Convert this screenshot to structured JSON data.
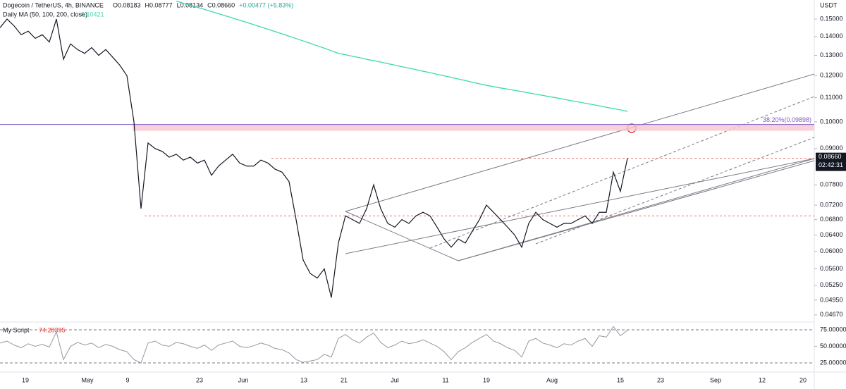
{
  "chart_data": {
    "type": "line",
    "title": "Dogecoin / TetherUS, 4h, BINANCE",
    "ohlc": [
      "O0.08183",
      "H0.08777",
      "L0.08134",
      "C0.08660",
      "+0.00477 (+5.83%)"
    ],
    "ma_label": "Daily MA (50, 100, 200, close)",
    "ma_value": "0.10421",
    "y_axis_label": "USDT",
    "log_scale": true,
    "ylim": [
      0.0454,
      0.1617
    ],
    "yticks": [
      {
        "value": 0.15,
        "label": "0.15000"
      },
      {
        "value": 0.14,
        "label": "0.14000"
      },
      {
        "value": 0.13,
        "label": "0.13000"
      },
      {
        "value": 0.12,
        "label": "0.12000"
      },
      {
        "value": 0.11,
        "label": "0.11000"
      },
      {
        "value": 0.1,
        "label": "0.10000"
      },
      {
        "value": 0.09,
        "label": "0.09000"
      },
      {
        "value": 0.078,
        "label": "0.07800"
      },
      {
        "value": 0.072,
        "label": "0.07200"
      },
      {
        "value": 0.068,
        "label": "0.06800"
      },
      {
        "value": 0.064,
        "label": "0.06400"
      },
      {
        "value": 0.06,
        "label": "0.06000"
      },
      {
        "value": 0.056,
        "label": "0.05600"
      },
      {
        "value": 0.0525,
        "label": "0.05250"
      },
      {
        "value": 0.0495,
        "label": "0.04950"
      },
      {
        "value": 0.0467,
        "label": "0.04670"
      }
    ],
    "x_labels": [
      "19",
      "May",
      "9",
      "23",
      "Jun",
      "13",
      "21",
      "Jul",
      "11",
      "19",
      "Aug",
      "15",
      "23",
      "Sep",
      "12",
      "20"
    ],
    "series": [
      {
        "name": "Dogecoin / TetherUS",
        "color": "#131722",
        "values": [
          0.145,
          0.15,
          0.146,
          0.141,
          0.143,
          0.139,
          0.141,
          0.137,
          0.15,
          0.128,
          0.136,
          0.133,
          0.131,
          0.134,
          0.13,
          0.133,
          0.129,
          0.125,
          0.12,
          0.1,
          0.071,
          0.092,
          0.09,
          0.089,
          0.087,
          0.088,
          0.086,
          0.087,
          0.085,
          0.086,
          0.081,
          0.084,
          0.086,
          0.088,
          0.085,
          0.084,
          0.084,
          0.086,
          0.085,
          0.083,
          0.082,
          0.079,
          0.068,
          0.058,
          0.055,
          0.054,
          0.056,
          0.05,
          0.062,
          0.069,
          0.068,
          0.067,
          0.071,
          0.078,
          0.071,
          0.067,
          0.066,
          0.068,
          0.067,
          0.069,
          0.07,
          0.069,
          0.066,
          0.063,
          0.061,
          0.063,
          0.062,
          0.065,
          0.068,
          0.072,
          0.07,
          0.068,
          0.066,
          0.064,
          0.061,
          0.067,
          0.07,
          0.068,
          0.067,
          0.066,
          0.067,
          0.067,
          0.068,
          0.069,
          0.067,
          0.07,
          0.07,
          0.082,
          0.076,
          0.0866
        ]
      },
      {
        "name": "Daily MA (50, 100, 200, close)",
        "color": "#3cd9b0",
        "values": [
          null,
          null,
          null,
          null,
          null,
          null,
          null,
          null,
          null,
          null,
          null,
          null,
          null,
          null,
          null,
          null,
          null,
          null,
          null,
          null,
          null,
          null,
          null,
          null,
          null,
          0.161,
          0.1597,
          0.1584,
          0.1571,
          0.1558,
          0.1545,
          0.1532,
          0.1519,
          0.1506,
          0.1493,
          0.148,
          0.1467,
          0.1454,
          0.1441,
          0.1428,
          0.1415,
          0.1402,
          0.1389,
          0.1376,
          0.1363,
          0.135,
          0.1337,
          0.1324,
          0.131,
          0.1303,
          0.1295,
          0.1288,
          0.128,
          0.1273,
          0.1266,
          0.1258,
          0.1251,
          0.1243,
          0.1236,
          0.1229,
          0.1221,
          0.1214,
          0.1206,
          0.1199,
          0.1192,
          0.1184,
          0.1177,
          0.1169,
          0.1162,
          0.1155,
          0.1149,
          0.1143,
          0.1138,
          0.1132,
          0.1127,
          0.1121,
          0.1115,
          0.111,
          0.1104,
          0.1099,
          0.1093,
          0.1087,
          0.1082,
          0.1076,
          0.1071,
          0.1065,
          0.1059,
          0.1054,
          0.1048,
          0.10421
        ]
      }
    ],
    "fib": {
      "label": "38.20%(0.09898)",
      "level": 0.09898
    },
    "levels": [
      0.0866,
      0.069
    ],
    "price_tag": {
      "value": 0.0866,
      "label": "0.08660",
      "timer": "02:42:31"
    },
    "oscillator": {
      "name": "My Script",
      "value_label": "74.28395",
      "color": "#9598a1",
      "ylim": [
        17.6,
        86.7
      ],
      "yticks": [
        {
          "value": 75,
          "label": "75.000000"
        },
        {
          "value": 50,
          "label": "50.000000"
        },
        {
          "value": 25,
          "label": "25.000000"
        }
      ],
      "values": [
        55,
        58,
        52,
        48,
        54,
        50,
        53,
        49,
        72,
        30,
        50,
        56,
        52,
        55,
        48,
        53,
        50,
        45,
        42,
        30,
        25,
        55,
        58,
        52,
        50,
        56,
        54,
        50,
        47,
        52,
        44,
        52,
        55,
        58,
        50,
        48,
        51,
        55,
        52,
        47,
        45,
        40,
        30,
        26,
        28,
        30,
        38,
        34,
        62,
        68,
        60,
        55,
        64,
        70,
        56,
        48,
        52,
        58,
        54,
        56,
        60,
        55,
        50,
        42,
        30,
        42,
        48,
        56,
        62,
        68,
        58,
        54,
        48,
        44,
        34,
        58,
        62,
        55,
        52,
        48,
        54,
        52,
        58,
        62,
        50,
        66,
        64,
        80,
        66,
        74.28395
      ]
    }
  }
}
